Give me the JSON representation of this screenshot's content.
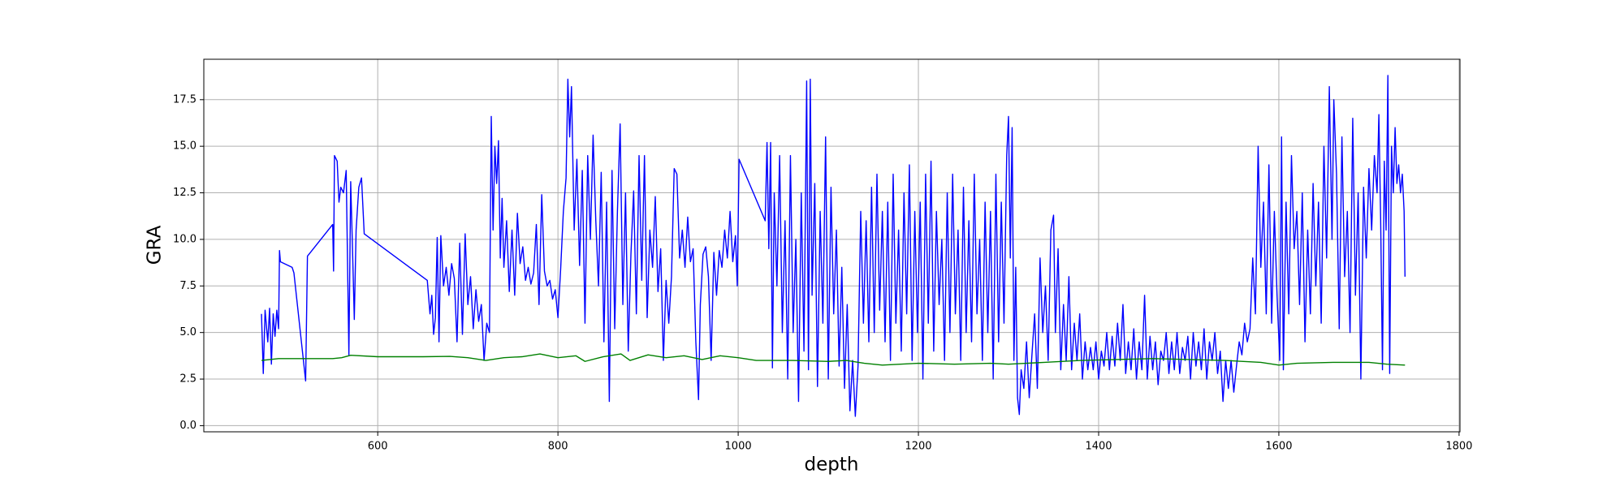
{
  "chart_data": {
    "type": "line",
    "xlabel": "depth",
    "ylabel": "GRA",
    "xlim": [
      407,
      1801
    ],
    "ylim": [
      -0.33,
      19.67
    ],
    "xticks": [
      600,
      800,
      1000,
      1200,
      1400,
      1600,
      1800
    ],
    "yticks": [
      {
        "value": 0,
        "label": "0.0"
      },
      {
        "value": 2.5,
        "label": "2.5"
      },
      {
        "value": 5,
        "label": "5.0"
      },
      {
        "value": 7.5,
        "label": "7.5"
      },
      {
        "value": 10,
        "label": "10.0"
      },
      {
        "value": 12.5,
        "label": "12.5"
      },
      {
        "value": 15,
        "label": "15.0"
      },
      {
        "value": 17.5,
        "label": "17.5"
      }
    ],
    "grid": true,
    "series": [
      {
        "color": "#0000ff",
        "x": [
          471,
          473,
          475,
          478,
          480,
          482,
          484,
          486,
          488,
          490,
          491,
          492,
          505,
          507,
          520,
          522,
          550,
          551,
          552,
          555,
          557,
          559,
          562,
          565,
          568,
          570,
          572,
          574,
          576,
          579,
          582,
          585,
          655,
          658,
          660,
          662,
          664,
          666,
          668,
          670,
          673,
          676,
          679,
          682,
          685,
          688,
          691,
          694,
          697,
          700,
          703,
          706,
          709,
          712,
          715,
          718,
          721,
          724,
          726,
          728,
          730,
          732,
          734,
          736,
          738,
          740,
          743,
          746,
          749,
          752,
          755,
          758,
          761,
          764,
          767,
          770,
          773,
          776,
          779,
          782,
          785,
          788,
          791,
          794,
          797,
          800,
          803,
          806,
          809,
          811,
          813,
          815,
          818,
          821,
          824,
          827,
          830,
          833,
          836,
          839,
          842,
          845,
          848,
          851,
          854,
          857,
          860,
          863,
          866,
          869,
          872,
          875,
          878,
          881,
          884,
          887,
          890,
          893,
          896,
          899,
          902,
          905,
          908,
          911,
          914,
          917,
          920,
          923,
          926,
          929,
          932,
          935,
          938,
          941,
          944,
          947,
          950,
          953,
          956,
          958,
          961,
          964,
          967,
          970,
          973,
          976,
          979,
          982,
          985,
          988,
          991,
          994,
          997,
          999,
          1001,
          1030,
          1032,
          1034,
          1036,
          1038,
          1040,
          1043,
          1046,
          1049,
          1052,
          1055,
          1058,
          1061,
          1064,
          1067,
          1070,
          1073,
          1076,
          1078,
          1080,
          1082,
          1085,
          1088,
          1091,
          1094,
          1097,
          1100,
          1103,
          1106,
          1109,
          1112,
          1115,
          1118,
          1121,
          1124,
          1127,
          1130,
          1133,
          1136,
          1139,
          1142,
          1145,
          1148,
          1151,
          1154,
          1157,
          1160,
          1163,
          1166,
          1169,
          1172,
          1175,
          1178,
          1181,
          1184,
          1187,
          1190,
          1193,
          1196,
          1199,
          1202,
          1205,
          1208,
          1211,
          1214,
          1217,
          1220,
          1223,
          1226,
          1229,
          1232,
          1235,
          1238,
          1241,
          1244,
          1247,
          1250,
          1253,
          1256,
          1259,
          1262,
          1265,
          1268,
          1271,
          1274,
          1277,
          1280,
          1283,
          1286,
          1289,
          1292,
          1295,
          1298,
          1300,
          1302,
          1304,
          1306,
          1308,
          1310,
          1312,
          1314,
          1317,
          1320,
          1323,
          1326,
          1329,
          1332,
          1335,
          1338,
          1341,
          1344,
          1347,
          1350,
          1352,
          1355,
          1358,
          1361,
          1364,
          1367,
          1370,
          1373,
          1376,
          1379,
          1382,
          1385,
          1388,
          1391,
          1394,
          1397,
          1400,
          1403,
          1406,
          1409,
          1412,
          1415,
          1418,
          1421,
          1424,
          1427,
          1430,
          1433,
          1436,
          1439,
          1442,
          1445,
          1448,
          1451,
          1454,
          1457,
          1460,
          1463,
          1466,
          1469,
          1472,
          1475,
          1478,
          1481,
          1484,
          1487,
          1490,
          1493,
          1496,
          1499,
          1502,
          1505,
          1508,
          1511,
          1514,
          1517,
          1520,
          1523,
          1526,
          1529,
          1532,
          1535,
          1538,
          1541,
          1544,
          1547,
          1550,
          1553,
          1556,
          1559,
          1562,
          1565,
          1568,
          1571,
          1574,
          1577,
          1580,
          1583,
          1586,
          1589,
          1592,
          1595,
          1598,
          1601,
          1603,
          1605,
          1608,
          1611,
          1614,
          1617,
          1620,
          1623,
          1626,
          1629,
          1632,
          1635,
          1638,
          1641,
          1644,
          1647,
          1650,
          1653,
          1656,
          1659,
          1661,
          1664,
          1667,
          1670,
          1673,
          1676,
          1679,
          1682,
          1685,
          1688,
          1691,
          1694,
          1697,
          1700,
          1703,
          1706,
          1709,
          1711,
          1713,
          1715,
          1717,
          1719,
          1721,
          1723,
          1725,
          1727,
          1729,
          1731,
          1733,
          1735,
          1737,
          1739,
          1740
        ],
        "values": [
          6.0,
          2.8,
          6.2,
          4.5,
          6.3,
          3.3,
          6.0,
          4.8,
          6.2,
          5.2,
          9.4,
          8.8,
          8.5,
          8.2,
          2.4,
          9.1,
          10.8,
          8.3,
          14.5,
          14.2,
          12.0,
          12.8,
          12.5,
          13.7,
          3.8,
          13.1,
          9.5,
          5.7,
          10.5,
          12.8,
          13.3,
          10.3,
          7.8,
          6.0,
          7.0,
          4.9,
          5.8,
          10.1,
          4.5,
          10.2,
          7.5,
          8.5,
          7.0,
          8.7,
          7.9,
          4.5,
          9.8,
          4.9,
          10.3,
          6.5,
          8.0,
          5.2,
          7.3,
          5.6,
          6.5,
          3.5,
          5.5,
          5.0,
          16.6,
          10.5,
          15.0,
          13.0,
          15.3,
          9.0,
          12.2,
          8.5,
          11.0,
          7.2,
          10.5,
          7.0,
          11.4,
          8.7,
          9.6,
          7.8,
          8.5,
          7.6,
          8.2,
          10.8,
          6.5,
          12.4,
          8.3,
          7.5,
          7.8,
          6.8,
          7.3,
          5.8,
          8.4,
          11.5,
          13.3,
          18.6,
          15.5,
          18.2,
          10.5,
          14.3,
          8.6,
          13.7,
          5.5,
          14.5,
          10.0,
          15.6,
          11.0,
          7.5,
          13.6,
          4.5,
          12.0,
          1.3,
          13.7,
          5.2,
          11.5,
          16.2,
          6.5,
          12.5,
          4.0,
          9.2,
          12.6,
          6.0,
          14.5,
          7.8,
          14.5,
          5.8,
          10.5,
          8.5,
          12.3,
          7.2,
          9.5,
          3.5,
          7.8,
          5.5,
          8.0,
          13.8,
          13.5,
          9.0,
          10.5,
          8.5,
          11.2,
          8.8,
          9.5,
          4.5,
          1.4,
          6.5,
          9.2,
          9.6,
          8.0,
          3.5,
          9.3,
          7.0,
          9.4,
          8.5,
          10.5,
          9.0,
          11.5,
          8.8,
          10.2,
          7.5,
          14.3,
          11.0,
          15.2,
          9.5,
          15.2,
          3.1,
          12.5,
          7.5,
          14.5,
          5.0,
          11.0,
          2.5,
          14.5,
          5.0,
          10.0,
          1.3,
          12.5,
          4.0,
          18.5,
          3.0,
          18.6,
          7.0,
          13.0,
          2.1,
          11.5,
          5.5,
          15.5,
          2.5,
          12.8,
          6.0,
          10.5,
          3.2,
          8.5,
          2.0,
          6.5,
          0.8,
          3.5,
          0.5,
          3.2,
          11.5,
          5.5,
          11.0,
          4.5,
          12.8,
          5.0,
          13.5,
          6.2,
          11.5,
          4.5,
          12.0,
          3.5,
          13.5,
          5.5,
          10.5,
          4.0,
          12.5,
          6.0,
          14.0,
          3.5,
          11.5,
          5.0,
          12.0,
          2.5,
          13.5,
          5.5,
          14.2,
          4.0,
          11.5,
          6.5,
          10.0,
          3.5,
          12.5,
          5.0,
          13.5,
          6.0,
          10.5,
          3.5,
          12.8,
          5.0,
          11.0,
          4.5,
          13.5,
          6.0,
          10.0,
          3.5,
          12.0,
          5.0,
          11.5,
          2.5,
          13.5,
          4.5,
          12.0,
          5.5,
          14.5,
          16.6,
          9.0,
          16.0,
          3.5,
          8.5,
          1.5,
          0.6,
          3.0,
          2.0,
          4.5,
          1.5,
          3.8,
          6.0,
          2.0,
          9.0,
          5.0,
          7.5,
          3.5,
          10.5,
          11.3,
          5.0,
          9.5,
          3.0,
          6.5,
          3.5,
          8.0,
          3.0,
          5.5,
          3.5,
          6.0,
          2.5,
          4.5,
          3.0,
          4.2,
          3.0,
          4.5,
          2.5,
          4.0,
          3.2,
          5.0,
          3.0,
          4.8,
          3.2,
          5.5,
          3.5,
          6.5,
          2.8,
          4.5,
          3.0,
          5.2,
          2.5,
          4.5,
          3.0,
          7.0,
          2.5,
          4.8,
          3.0,
          4.5,
          2.2,
          4.0,
          3.5,
          5.0,
          2.8,
          4.5,
          3.0,
          5.0,
          2.8,
          4.2,
          3.5,
          4.8,
          2.5,
          5.0,
          3.2,
          4.5,
          3.0,
          5.2,
          2.5,
          4.5,
          3.5,
          5.0,
          2.8,
          4.0,
          1.3,
          3.5,
          2.0,
          3.5,
          1.8,
          3.2,
          4.5,
          3.8,
          5.5,
          4.5,
          5.2,
          9.0,
          6.0,
          15.0,
          8.5,
          12.0,
          6.0,
          14.0,
          5.5,
          11.5,
          7.0,
          3.5,
          15.5,
          3.0,
          12.0,
          6.0,
          14.5,
          9.5,
          11.5,
          6.5,
          12.5,
          4.5,
          10.5,
          6.0,
          13.0,
          7.5,
          12.0,
          5.5,
          15.0,
          9.0,
          18.2,
          10.0,
          17.5,
          13.5,
          5.2,
          15.5,
          8.0,
          11.5,
          5.0,
          16.5,
          7.0,
          12.5,
          2.5,
          12.8,
          9.0,
          13.8,
          10.5,
          14.5,
          12.5,
          16.7,
          11.0,
          3.0,
          14.2,
          10.5,
          18.8,
          2.8,
          15.0,
          12.5,
          16.0,
          13.0,
          14.0,
          12.5,
          13.5,
          11.5,
          8.0
        ]
      },
      {
        "color": "#008000",
        "x": [
          471,
          490,
          550,
          560,
          570,
          600,
          650,
          680,
          700,
          720,
          740,
          760,
          780,
          800,
          820,
          830,
          850,
          870,
          880,
          900,
          920,
          940,
          960,
          980,
          1000,
          1020,
          1060,
          1100,
          1120,
          1140,
          1160,
          1200,
          1240,
          1280,
          1300,
          1340,
          1380,
          1420,
          1460,
          1500,
          1540,
          1580,
          1600,
          1620,
          1660,
          1700,
          1720,
          1740
        ],
        "values": [
          3.5,
          3.6,
          3.6,
          3.65,
          3.78,
          3.7,
          3.7,
          3.72,
          3.65,
          3.5,
          3.65,
          3.7,
          3.85,
          3.65,
          3.75,
          3.45,
          3.7,
          3.85,
          3.5,
          3.8,
          3.65,
          3.75,
          3.55,
          3.75,
          3.65,
          3.5,
          3.5,
          3.45,
          3.5,
          3.35,
          3.25,
          3.35,
          3.3,
          3.35,
          3.3,
          3.4,
          3.5,
          3.55,
          3.6,
          3.55,
          3.5,
          3.4,
          3.25,
          3.35,
          3.4,
          3.4,
          3.3,
          3.25
        ]
      }
    ]
  }
}
